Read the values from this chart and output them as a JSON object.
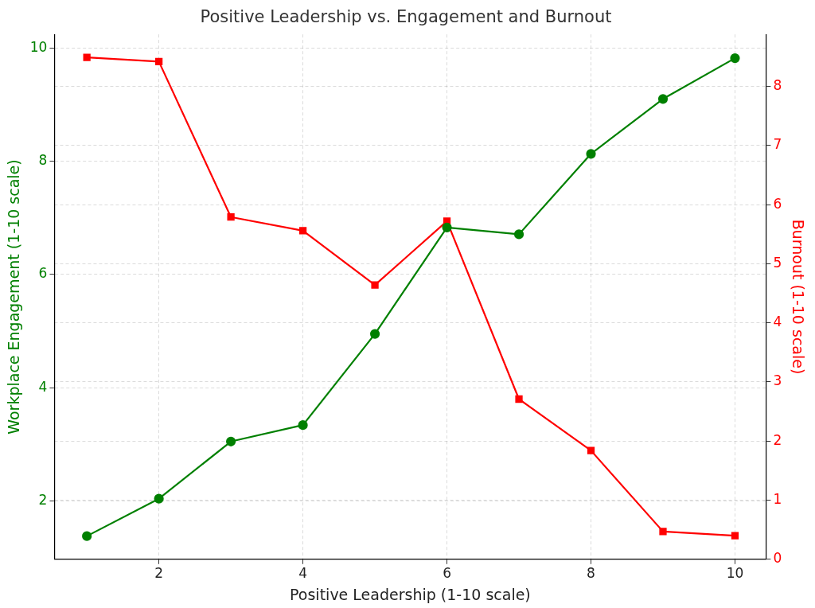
{
  "chart_data": {
    "type": "line",
    "title": "Positive Leadership vs. Engagement and Burnout",
    "xlabel": "Positive Leadership (1-10 scale)",
    "ylabel": "Workplace Engagement (1-10 scale)",
    "y2label": "Burnout (1-10 scale)",
    "x": [
      1,
      2,
      3,
      4,
      5,
      6,
      7,
      8,
      9,
      10
    ],
    "series": [
      {
        "color": "#008000",
        "marker": "circle",
        "values": [
          1.38,
          2.04,
          3.05,
          3.34,
          4.95,
          6.83,
          6.71,
          8.13,
          9.1,
          9.82
        ]
      },
      {
        "color": "#ff0000",
        "marker": "square",
        "axis": "y2",
        "values": [
          8.49,
          8.42,
          5.79,
          5.56,
          4.64,
          5.72,
          2.71,
          1.84,
          0.47,
          0.4
        ]
      }
    ],
    "xlim": [
      0.55,
      10.43
    ],
    "xticks": [
      2,
      4,
      6,
      8,
      10
    ],
    "ylim": [
      0.97,
      10.24
    ],
    "yticks": [
      2,
      4,
      6,
      8,
      10
    ],
    "y2lim": [
      0,
      8.88
    ],
    "y2ticks": [
      0,
      1,
      2,
      3,
      4,
      5,
      6,
      7,
      8
    ],
    "grid": true,
    "legend": false,
    "line_style": "solid"
  }
}
